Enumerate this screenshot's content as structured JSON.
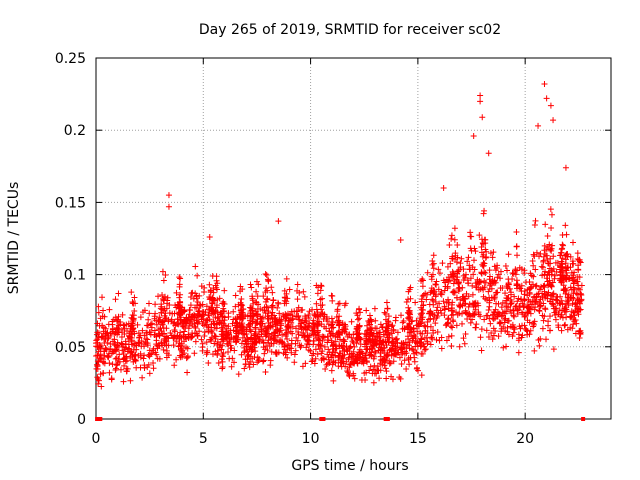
{
  "chart_data": {
    "type": "scatter",
    "title": "Day 265 of 2019, SRMTID for receiver sc02",
    "xlabel": "GPS time / hours",
    "ylabel": "SRMTID / TECUs",
    "xlim": [
      0,
      24
    ],
    "ylim": [
      0,
      0.25
    ],
    "xticks": [
      0,
      5,
      10,
      15,
      20
    ],
    "xtick_labels": [
      "0",
      "5",
      "10",
      "15",
      "20"
    ],
    "yticks": [
      0,
      0.05,
      0.1,
      0.15,
      0.2,
      0.25
    ],
    "ytick_labels": [
      "0",
      "0.05",
      "0.1",
      "0.15",
      "0.2",
      "0.25"
    ],
    "grid": true,
    "marker": "plus",
    "marker_color": "#ff0000",
    "series": [
      {
        "name": "SRMTID",
        "envelope": [
          {
            "x": 0.0,
            "mean": 0.045,
            "spread": 0.018
          },
          {
            "x": 1.0,
            "mean": 0.052,
            "spread": 0.02
          },
          {
            "x": 2.0,
            "mean": 0.048,
            "spread": 0.02
          },
          {
            "x": 3.0,
            "mean": 0.06,
            "spread": 0.022
          },
          {
            "x": 4.0,
            "mean": 0.058,
            "spread": 0.02
          },
          {
            "x": 5.0,
            "mean": 0.07,
            "spread": 0.02
          },
          {
            "x": 6.0,
            "mean": 0.058,
            "spread": 0.018
          },
          {
            "x": 7.0,
            "mean": 0.055,
            "spread": 0.018
          },
          {
            "x": 8.0,
            "mean": 0.062,
            "spread": 0.02
          },
          {
            "x": 9.0,
            "mean": 0.062,
            "spread": 0.02
          },
          {
            "x": 10.0,
            "mean": 0.06,
            "spread": 0.02
          },
          {
            "x": 11.0,
            "mean": 0.05,
            "spread": 0.018
          },
          {
            "x": 12.0,
            "mean": 0.045,
            "spread": 0.016
          },
          {
            "x": 13.0,
            "mean": 0.045,
            "spread": 0.016
          },
          {
            "x": 14.0,
            "mean": 0.05,
            "spread": 0.018
          },
          {
            "x": 15.0,
            "mean": 0.055,
            "spread": 0.02
          },
          {
            "x": 16.0,
            "mean": 0.08,
            "spread": 0.025
          },
          {
            "x": 17.0,
            "mean": 0.085,
            "spread": 0.025
          },
          {
            "x": 18.0,
            "mean": 0.09,
            "spread": 0.03
          },
          {
            "x": 19.0,
            "mean": 0.08,
            "spread": 0.025
          },
          {
            "x": 20.0,
            "mean": 0.08,
            "spread": 0.025
          },
          {
            "x": 21.0,
            "mean": 0.09,
            "spread": 0.03
          },
          {
            "x": 22.0,
            "mean": 0.085,
            "spread": 0.025
          },
          {
            "x": 22.6,
            "mean": 0.07,
            "spread": 0.02
          }
        ],
        "peaks": [
          {
            "x": 3.4,
            "y": 0.155
          },
          {
            "x": 3.4,
            "y": 0.147
          },
          {
            "x": 5.3,
            "y": 0.126
          },
          {
            "x": 8.5,
            "y": 0.137
          },
          {
            "x": 14.2,
            "y": 0.124
          },
          {
            "x": 16.2,
            "y": 0.16
          },
          {
            "x": 17.6,
            "y": 0.196
          },
          {
            "x": 17.9,
            "y": 0.224
          },
          {
            "x": 17.9,
            "y": 0.22
          },
          {
            "x": 18.0,
            "y": 0.209
          },
          {
            "x": 18.3,
            "y": 0.184
          },
          {
            "x": 20.6,
            "y": 0.203
          },
          {
            "x": 20.9,
            "y": 0.232
          },
          {
            "x": 21.0,
            "y": 0.222
          },
          {
            "x": 21.2,
            "y": 0.217
          },
          {
            "x": 21.3,
            "y": 0.207
          },
          {
            "x": 21.9,
            "y": 0.174
          }
        ],
        "zeros": [
          0.05,
          0.2,
          10.5,
          10.6,
          13.5,
          13.6,
          22.7
        ]
      }
    ]
  }
}
